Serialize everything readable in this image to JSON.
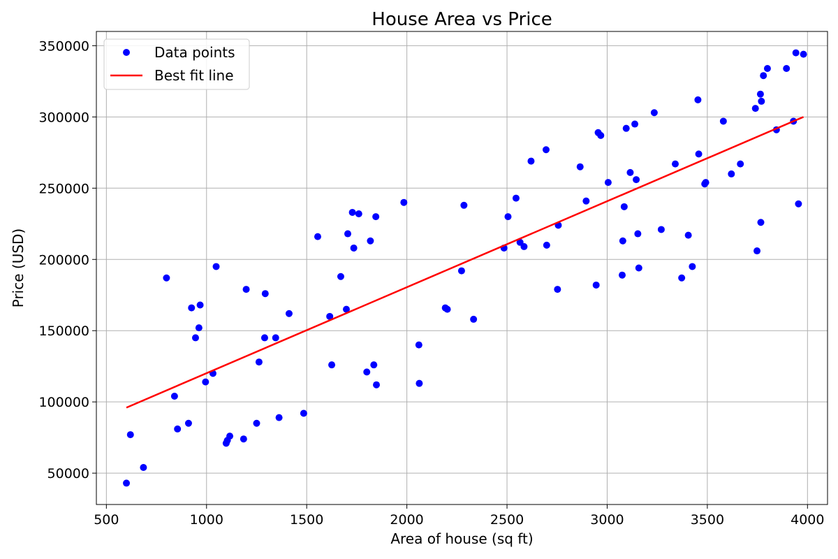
{
  "chart_data": {
    "type": "scatter",
    "title": "House Area vs Price",
    "xlabel": "Area of house (sq ft)",
    "ylabel": "Price (USD)",
    "xlim": [
      450,
      4100
    ],
    "ylim": [
      28000,
      360000
    ],
    "xticks": [
      500,
      1000,
      1500,
      2000,
      2500,
      3000,
      3500,
      4000
    ],
    "yticks": [
      50000,
      100000,
      150000,
      200000,
      250000,
      300000,
      350000
    ],
    "grid": true,
    "legend_position": "top-left",
    "series": [
      {
        "name": "Data points",
        "kind": "scatter",
        "color": "#0000ff",
        "points": [
          [
            600,
            43000
          ],
          [
            620,
            77000
          ],
          [
            685,
            54000
          ],
          [
            800,
            187000
          ],
          [
            840,
            104000
          ],
          [
            855,
            81000
          ],
          [
            910,
            85000
          ],
          [
            925,
            166000
          ],
          [
            945,
            145000
          ],
          [
            962,
            152000
          ],
          [
            968,
            168000
          ],
          [
            995,
            114000
          ],
          [
            1032,
            120000
          ],
          [
            1048,
            195000
          ],
          [
            1098,
            71000
          ],
          [
            1104,
            73000
          ],
          [
            1116,
            76000
          ],
          [
            1185,
            74000
          ],
          [
            1198,
            179000
          ],
          [
            1250,
            85000
          ],
          [
            1262,
            128000
          ],
          [
            1290,
            145000
          ],
          [
            1293,
            176000
          ],
          [
            1345,
            145000
          ],
          [
            1362,
            89000
          ],
          [
            1412,
            162000
          ],
          [
            1485,
            92000
          ],
          [
            1555,
            216000
          ],
          [
            1615,
            160000
          ],
          [
            1625,
            126000
          ],
          [
            1670,
            188000
          ],
          [
            1698,
            165000
          ],
          [
            1705,
            218000
          ],
          [
            1728,
            233000
          ],
          [
            1735,
            208000
          ],
          [
            1760,
            232000
          ],
          [
            1800,
            121000
          ],
          [
            1818,
            213000
          ],
          [
            1835,
            126000
          ],
          [
            1845,
            230000
          ],
          [
            1848,
            112000
          ],
          [
            1985,
            240000
          ],
          [
            2060,
            140000
          ],
          [
            2062,
            113000
          ],
          [
            2192,
            166000
          ],
          [
            2202,
            165000
          ],
          [
            2273,
            192000
          ],
          [
            2285,
            238000
          ],
          [
            2333,
            158000
          ],
          [
            2485,
            208000
          ],
          [
            2505,
            230000
          ],
          [
            2545,
            243000
          ],
          [
            2565,
            212000
          ],
          [
            2585,
            209000
          ],
          [
            2620,
            269000
          ],
          [
            2695,
            277000
          ],
          [
            2698,
            210000
          ],
          [
            2752,
            179000
          ],
          [
            2756,
            224000
          ],
          [
            2865,
            265000
          ],
          [
            2895,
            241000
          ],
          [
            2945,
            182000
          ],
          [
            2955,
            289000
          ],
          [
            2968,
            287000
          ],
          [
            3005,
            254000
          ],
          [
            3075,
            189000
          ],
          [
            3078,
            213000
          ],
          [
            3085,
            237000
          ],
          [
            3095,
            292000
          ],
          [
            3115,
            261000
          ],
          [
            3138,
            295000
          ],
          [
            3145,
            256000
          ],
          [
            3153,
            218000
          ],
          [
            3158,
            194000
          ],
          [
            3235,
            303000
          ],
          [
            3270,
            221000
          ],
          [
            3340,
            267000
          ],
          [
            3372,
            187000
          ],
          [
            3405,
            217000
          ],
          [
            3425,
            195000
          ],
          [
            3453,
            312000
          ],
          [
            3457,
            274000
          ],
          [
            3487,
            253000
          ],
          [
            3492,
            254000
          ],
          [
            3580,
            297000
          ],
          [
            3620,
            260000
          ],
          [
            3665,
            267000
          ],
          [
            3740,
            306000
          ],
          [
            3748,
            206000
          ],
          [
            3765,
            316000
          ],
          [
            3767,
            226000
          ],
          [
            3770,
            311000
          ],
          [
            3780,
            329000
          ],
          [
            3800,
            334000
          ],
          [
            3845,
            291000
          ],
          [
            3895,
            334000
          ],
          [
            3930,
            297000
          ],
          [
            3942,
            345000
          ],
          [
            3955,
            239000
          ],
          [
            3980,
            344000
          ]
        ]
      },
      {
        "name": "Best fit line",
        "kind": "line",
        "color": "#ff0000",
        "x": [
          600,
          3980
        ],
        "y": [
          96000,
          300000
        ]
      }
    ]
  }
}
